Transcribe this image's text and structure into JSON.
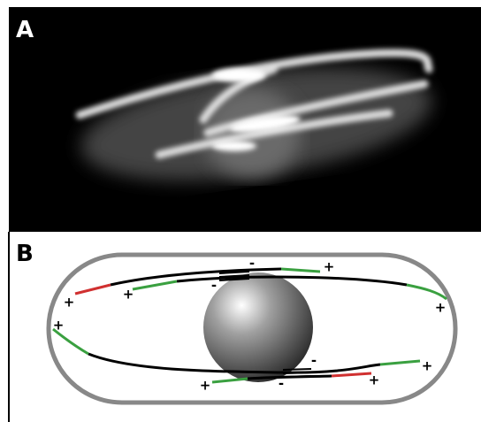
{
  "panels": [
    {
      "label": "A"
    },
    {
      "label": "B",
      "signs": [
        "-",
        "+",
        "-",
        "+",
        "+",
        "+",
        "+",
        "-",
        "+",
        "-",
        "+",
        "+"
      ]
    }
  ]
}
